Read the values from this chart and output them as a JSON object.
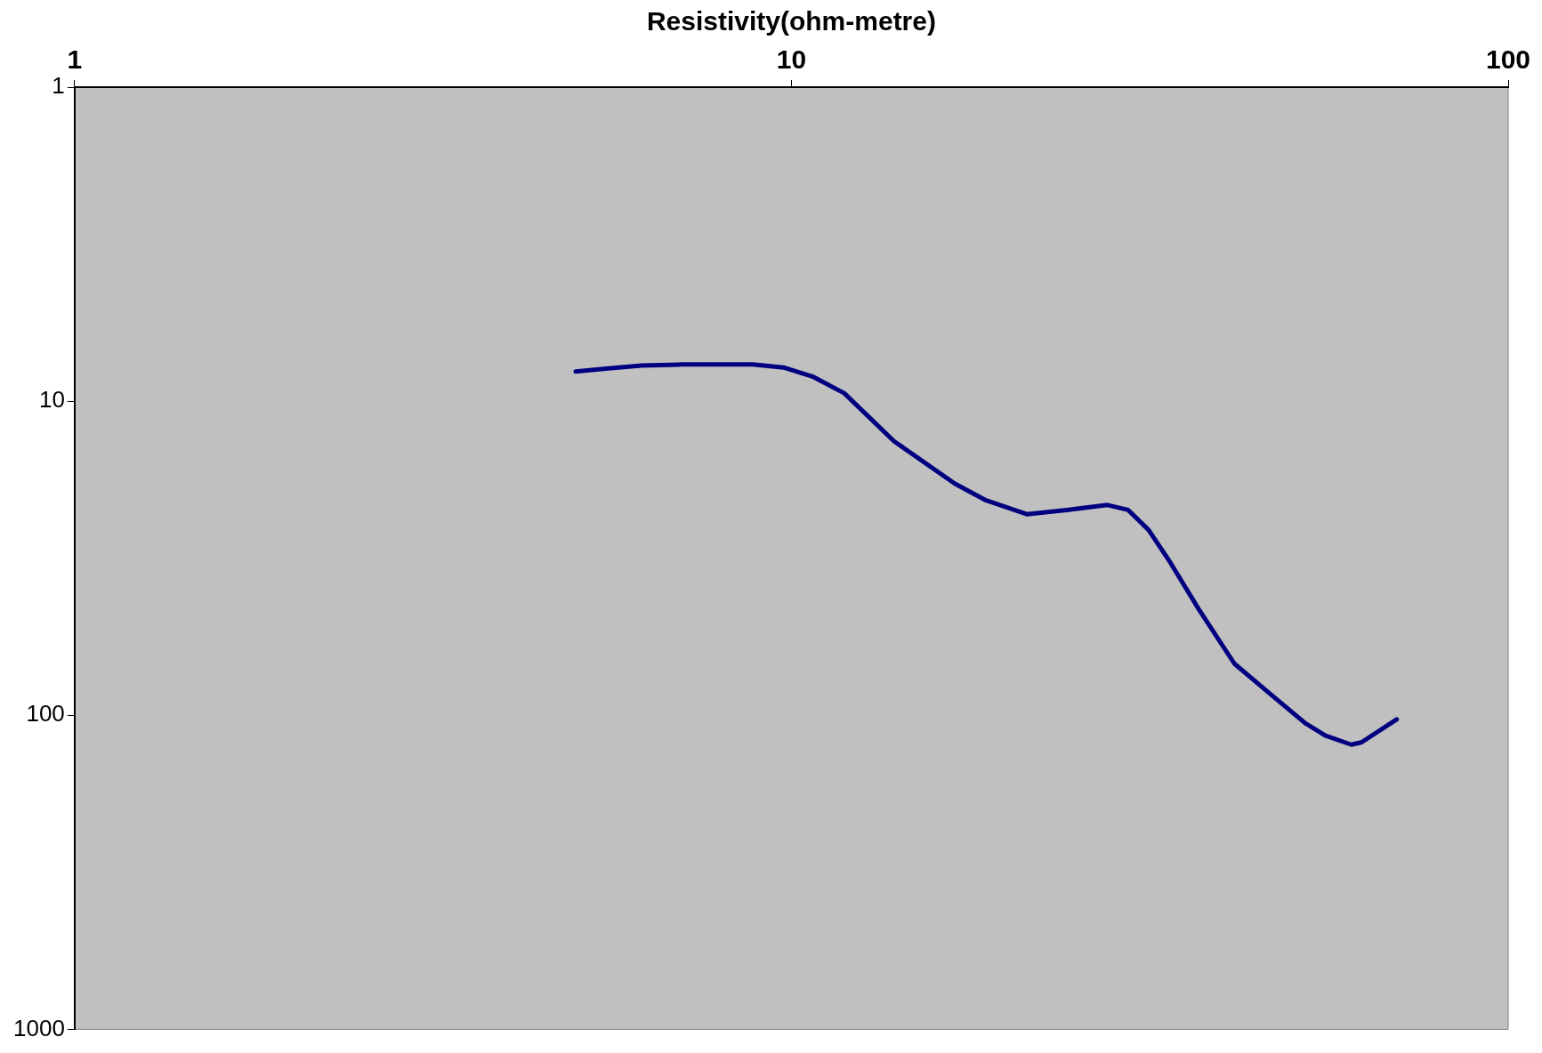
{
  "chart_data": {
    "type": "line",
    "xlabel": "Resistivity(ohm-metre)",
    "x": [
      5.0,
      5.51,
      6.18,
      7.03,
      8.83,
      9.75,
      10.7,
      11.85,
      13.9,
      16.9,
      18.7,
      21.3,
      24.2,
      27.6,
      29.5,
      31.5,
      33.6,
      37.0,
      41.5,
      46.5,
      52.1,
      55.6,
      60.4,
      62.4,
      69.9
    ],
    "series": [
      {
        "color": "#000080",
        "values": [
          8.04,
          7.87,
          7.7,
          7.64,
          7.64,
          7.81,
          8.34,
          9.43,
          13.4,
          18.3,
          20.7,
          22.9,
          22.2,
          21.4,
          22.2,
          25.7,
          32,
          45.9,
          68.5,
          85.3,
          106,
          116,
          124,
          122,
          103
        ]
      }
    ],
    "xlim": [
      1,
      100
    ],
    "ylim": [
      1000,
      1
    ],
    "xticks": [
      1,
      10,
      100
    ],
    "yticks": [
      1,
      10,
      100,
      1000
    ],
    "log": "xy",
    "grid": false,
    "legend": false,
    "marker": "none",
    "line_style": "solid"
  }
}
